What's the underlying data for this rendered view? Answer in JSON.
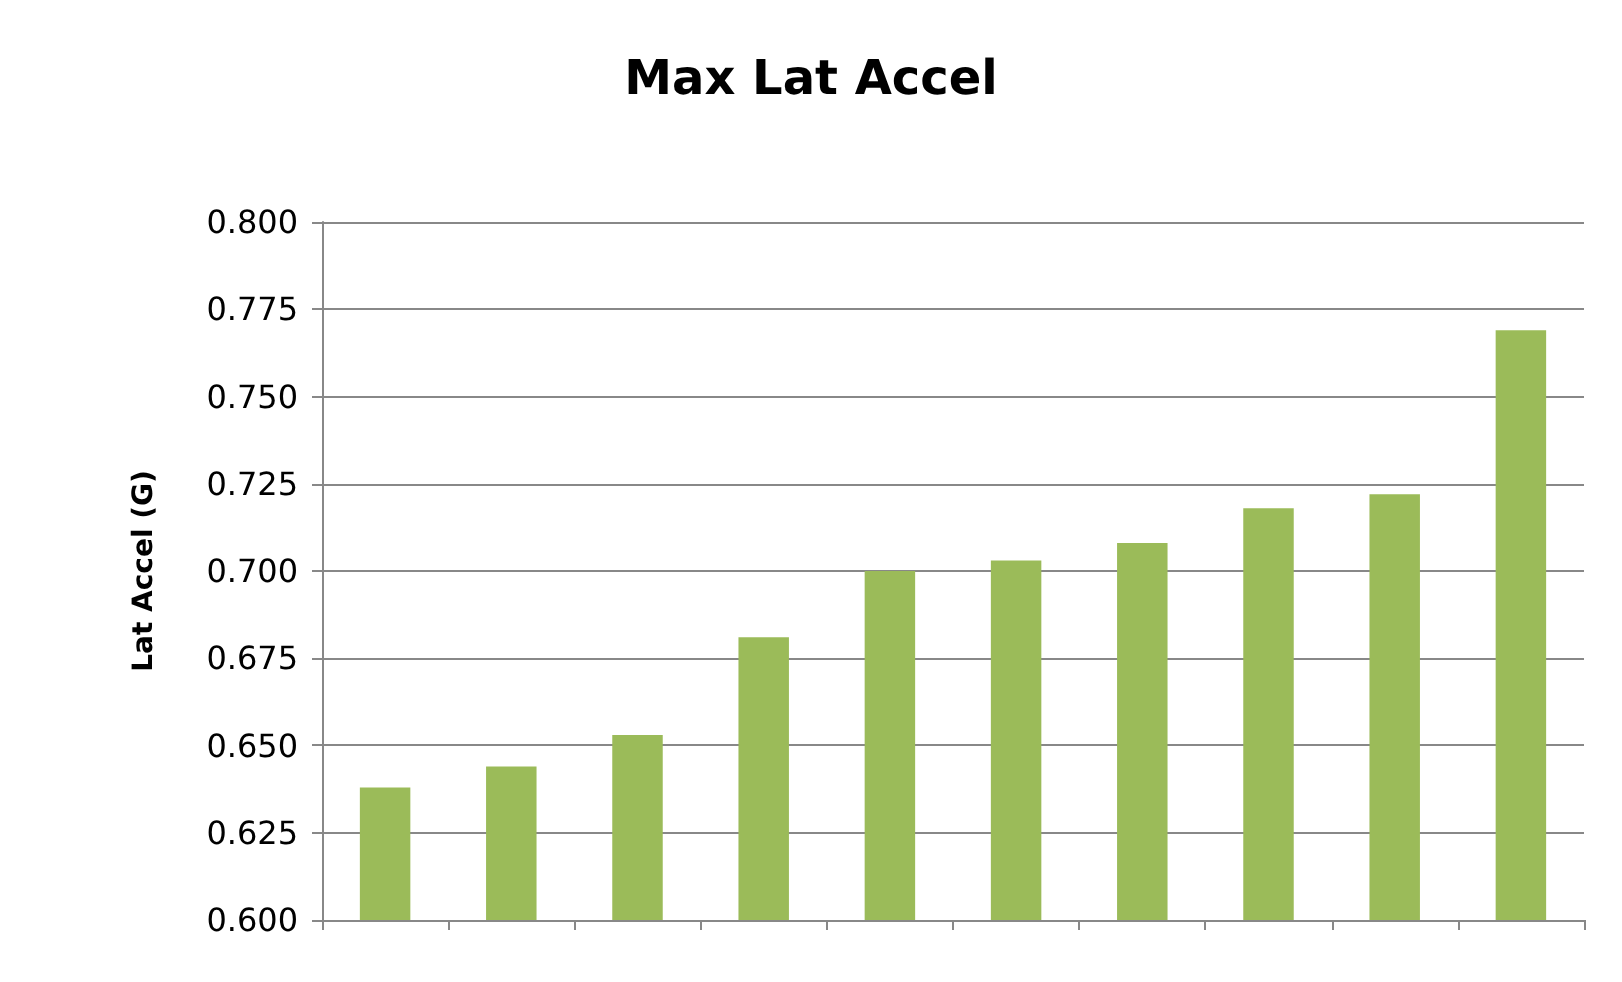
{
  "chart_data": {
    "type": "bar",
    "title": "Max Lat Accel",
    "ylabel": "Lat Accel (G)",
    "categories": [
      null,
      null,
      null,
      null,
      null,
      null,
      null,
      null,
      null,
      null
    ],
    "values": [
      0.638,
      0.644,
      0.653,
      0.681,
      0.7,
      0.703,
      0.708,
      0.718,
      0.722,
      0.769
    ],
    "color": "#9bbb59",
    "ylim": [
      0.6,
      0.8
    ],
    "yticks": [
      {
        "value": 0.6,
        "label": "0.600"
      },
      {
        "value": 0.625,
        "label": "0.625"
      },
      {
        "value": 0.65,
        "label": "0.650"
      },
      {
        "value": 0.675,
        "label": "0.675"
      },
      {
        "value": 0.7,
        "label": "0.700"
      },
      {
        "value": 0.725,
        "label": "0.725"
      },
      {
        "value": 0.75,
        "label": "0.750"
      },
      {
        "value": 0.775,
        "label": "0.775"
      },
      {
        "value": 0.8,
        "label": "0.800"
      }
    ],
    "grid": "y"
  }
}
